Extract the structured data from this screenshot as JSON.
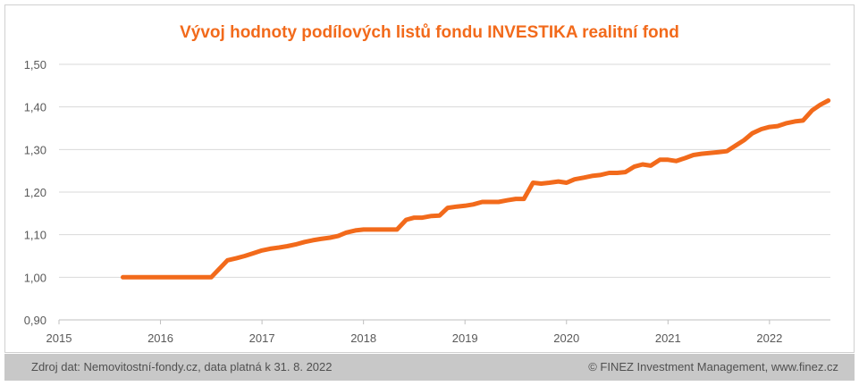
{
  "chart_data": {
    "type": "line",
    "title": "Vývoj hodnoty podílových listů fondu INVESTIKA realitní fond",
    "xlabel": "",
    "ylabel": "",
    "xlim": [
      2015.0,
      2022.6
    ],
    "ylim": [
      0.9,
      1.5
    ],
    "x_ticks": [
      "2015",
      "2016",
      "2017",
      "2018",
      "2019",
      "2020",
      "2021",
      "2022"
    ],
    "y_ticks": [
      "0,90",
      "1,00",
      "1,10",
      "1,20",
      "1,30",
      "1,40",
      "1,50"
    ],
    "grid": true,
    "line_color": "#f26a1b",
    "series": [
      {
        "x": [
          2015.63,
          2015.75,
          2015.9,
          2016.05,
          2016.2,
          2016.35,
          2016.5,
          2016.58,
          2016.66,
          2016.75,
          2016.83,
          2016.92,
          2017.0,
          2017.08,
          2017.17,
          2017.25,
          2017.33,
          2017.42,
          2017.5,
          2017.58,
          2017.67,
          2017.75,
          2017.83,
          2017.92,
          2018.0,
          2018.08,
          2018.17,
          2018.25,
          2018.33,
          2018.42,
          2018.5,
          2018.58,
          2018.67,
          2018.75,
          2018.83,
          2018.92,
          2019.0,
          2019.08,
          2019.17,
          2019.25,
          2019.33,
          2019.42,
          2019.5,
          2019.58,
          2019.67,
          2019.75,
          2019.83,
          2019.92,
          2020.0,
          2020.08,
          2020.17,
          2020.25,
          2020.33,
          2020.42,
          2020.5,
          2020.58,
          2020.67,
          2020.75,
          2020.83,
          2020.92,
          2021.0,
          2021.08,
          2021.17,
          2021.25,
          2021.33,
          2021.42,
          2021.5,
          2021.58,
          2021.67,
          2021.75,
          2021.83,
          2021.92,
          2022.0,
          2022.08,
          2022.17,
          2022.25,
          2022.33,
          2022.42,
          2022.5,
          2022.58
        ],
        "y": [
          1.0,
          1.0,
          1.0,
          1.0,
          1.0,
          1.0,
          1.0,
          1.02,
          1.04,
          1.045,
          1.05,
          1.057,
          1.063,
          1.067,
          1.07,
          1.073,
          1.077,
          1.083,
          1.087,
          1.09,
          1.093,
          1.097,
          1.105,
          1.11,
          1.112,
          1.112,
          1.112,
          1.112,
          1.112,
          1.135,
          1.14,
          1.14,
          1.144,
          1.145,
          1.163,
          1.166,
          1.168,
          1.171,
          1.177,
          1.177,
          1.177,
          1.181,
          1.184,
          1.184,
          1.222,
          1.22,
          1.222,
          1.225,
          1.222,
          1.23,
          1.234,
          1.238,
          1.24,
          1.245,
          1.245,
          1.247,
          1.26,
          1.265,
          1.262,
          1.276,
          1.276,
          1.273,
          1.28,
          1.287,
          1.29,
          1.292,
          1.294,
          1.296,
          1.31,
          1.322,
          1.338,
          1.348,
          1.353,
          1.355,
          1.362,
          1.366,
          1.368,
          1.392,
          1.405,
          1.415
        ]
      }
    ]
  },
  "footer": {
    "source": "Zdroj dat: Nemovitostní-fondy.cz, data platná k 31. 8. 2022",
    "copyright": "© FINEZ Investment Management, www.finez.cz"
  }
}
